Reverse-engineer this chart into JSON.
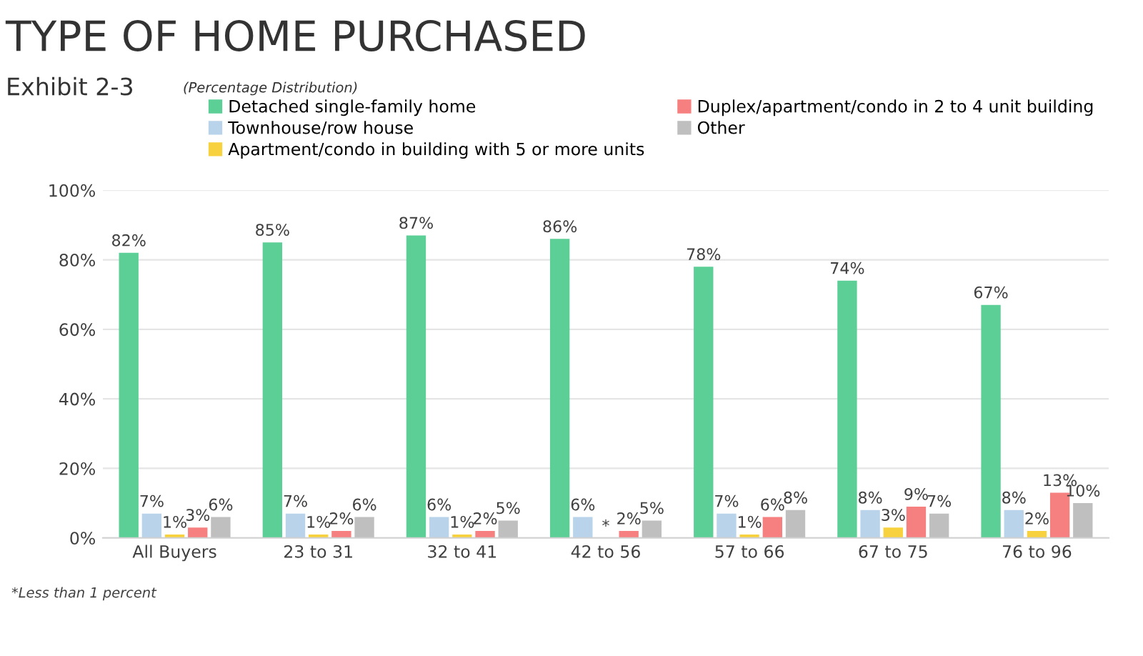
{
  "chart_data": {
    "type": "bar",
    "title": "TYPE OF HOME PURCHASED",
    "subtitle": "Exhibit 2-3",
    "annotations": [
      "(Percentage Distribution)",
      "*Less than 1 percent"
    ],
    "categories": [
      "All Buyers",
      "23 to 31",
      "32 to 41",
      "42 to 56",
      "57 to 66",
      "67 to 75",
      "76 to 96"
    ],
    "series": [
      {
        "name": "Detached single-family home",
        "color": "#5ccf96",
        "values": [
          82,
          85,
          87,
          86,
          78,
          74,
          67
        ],
        "value_labels": [
          "82%",
          "85%",
          "87%",
          "86%",
          "78%",
          "74%",
          "67%"
        ]
      },
      {
        "name": "Townhouse/row house",
        "color": "#b8d3ea",
        "values": [
          7,
          7,
          6,
          6,
          7,
          8,
          8
        ],
        "value_labels": [
          "7%",
          "7%",
          "6%",
          "6%",
          "7%",
          "8%",
          "8%"
        ]
      },
      {
        "name": "Apartment/condo in building with 5 or more units",
        "color": "#f7d23e",
        "values": [
          1,
          1,
          1,
          null,
          1,
          3,
          2
        ],
        "value_labels": [
          "1%",
          "1%",
          "1%",
          "*",
          "1%",
          "3%",
          "2%"
        ]
      },
      {
        "name": "Duplex/apartment/condo in 2 to 4 unit building",
        "color": "#f67f7f",
        "values": [
          3,
          2,
          2,
          2,
          6,
          9,
          13
        ],
        "value_labels": [
          "3%",
          "2%",
          "2%",
          "2%",
          "6%",
          "9%",
          "13%"
        ]
      },
      {
        "name": "Other",
        "color": "#bfbfbf",
        "values": [
          6,
          6,
          5,
          5,
          8,
          7,
          10
        ],
        "value_labels": [
          "6%",
          "6%",
          "5%",
          "5%",
          "8%",
          "7%",
          "10%"
        ]
      }
    ],
    "ylim": [
      0,
      100
    ],
    "yticks": [
      {
        "value": 0,
        "label": "0%"
      },
      {
        "value": 20,
        "label": "20%"
      },
      {
        "value": 40,
        "label": "40%"
      },
      {
        "value": 60,
        "label": "60%"
      },
      {
        "value": 80,
        "label": "80%"
      },
      {
        "value": 100,
        "label": "100%"
      }
    ],
    "grid": "y",
    "legend": "top"
  }
}
